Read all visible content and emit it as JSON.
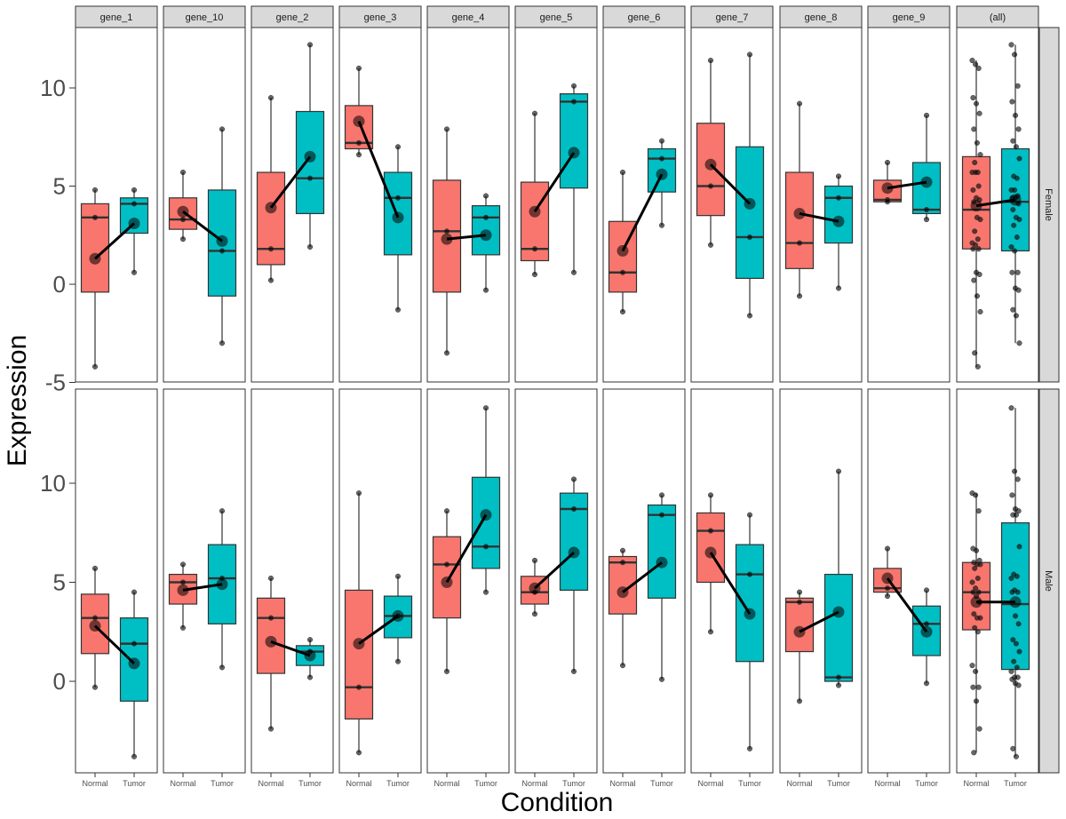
{
  "chart_data": {
    "type": "boxplot",
    "xlabel": "Condition",
    "ylabel": "Expression",
    "genes": [
      "gene_1",
      "gene_10",
      "gene_2",
      "gene_3",
      "gene_4",
      "gene_5",
      "gene_6",
      "gene_7",
      "gene_8",
      "gene_9",
      "(all)"
    ],
    "conditions": [
      "Normal",
      "Tumor"
    ],
    "condition_colors": {
      "Normal": "#F8766D",
      "Tumor": "#00BFC4"
    },
    "y_ticks": [
      -5,
      0,
      5,
      10
    ],
    "panels": [
      {
        "sex": "Female",
        "ylim": [
          -5,
          13
        ],
        "y_ticks": [
          -5,
          0,
          5,
          10
        ],
        "genes": {
          "gene_1": {
            "Normal": {
              "min": -4.2,
              "q1": -0.4,
              "median": 3.4,
              "q3": 4.1,
              "max": 4.8,
              "mean": 1.3,
              "points": [
                4.8,
                3.4,
                -4.2
              ]
            },
            "Tumor": {
              "min": 0.6,
              "q1": 2.6,
              "median": 4.1,
              "q3": 4.4,
              "max": 4.8,
              "mean": 3.1,
              "points": [
                4.8,
                4.1,
                0.6
              ]
            }
          },
          "gene_10": {
            "Normal": {
              "min": 2.3,
              "q1": 2.8,
              "median": 3.3,
              "q3": 4.4,
              "max": 5.7,
              "mean": 3.7,
              "points": [
                5.7,
                3.3,
                2.3
              ]
            },
            "Tumor": {
              "min": -3.0,
              "q1": -0.6,
              "median": 1.7,
              "q3": 4.8,
              "max": 7.9,
              "mean": 2.2,
              "points": [
                7.9,
                1.7,
                -3.0
              ]
            }
          },
          "gene_2": {
            "Normal": {
              "min": 0.2,
              "q1": 1.0,
              "median": 1.8,
              "q3": 5.7,
              "max": 9.5,
              "mean": 3.9,
              "points": [
                9.5,
                1.8,
                0.2
              ]
            },
            "Tumor": {
              "min": 1.9,
              "q1": 3.6,
              "median": 5.4,
              "q3": 8.8,
              "max": 12.2,
              "mean": 6.5,
              "points": [
                12.2,
                5.4,
                1.9
              ]
            }
          },
          "gene_3": {
            "Normal": {
              "min": 6.6,
              "q1": 6.9,
              "median": 7.2,
              "q3": 9.1,
              "max": 11.0,
              "mean": 8.3,
              "points": [
                11.0,
                7.2,
                6.6
              ]
            },
            "Tumor": {
              "min": -1.3,
              "q1": 1.5,
              "median": 4.4,
              "q3": 5.7,
              "max": 7.0,
              "mean": 3.4,
              "points": [
                7.0,
                4.4,
                -1.3
              ]
            }
          },
          "gene_4": {
            "Normal": {
              "min": -3.5,
              "q1": -0.4,
              "median": 2.7,
              "q3": 5.3,
              "max": 7.9,
              "mean": 2.3,
              "points": [
                7.9,
                2.7,
                -3.5
              ]
            },
            "Tumor": {
              "min": -0.3,
              "q1": 1.5,
              "median": 3.4,
              "q3": 4.0,
              "max": 4.5,
              "mean": 2.5,
              "points": [
                4.5,
                3.4,
                -0.3
              ]
            }
          },
          "gene_5": {
            "Normal": {
              "min": 0.5,
              "q1": 1.2,
              "median": 1.8,
              "q3": 5.2,
              "max": 8.7,
              "mean": 3.7,
              "points": [
                8.7,
                1.8,
                0.5
              ]
            },
            "Tumor": {
              "min": 0.6,
              "q1": 4.9,
              "median": 9.3,
              "q3": 9.7,
              "max": 10.1,
              "mean": 6.7,
              "points": [
                10.1,
                9.3,
                0.6
              ]
            }
          },
          "gene_6": {
            "Normal": {
              "min": -1.4,
              "q1": -0.4,
              "median": 0.6,
              "q3": 3.2,
              "max": 5.7,
              "mean": 1.7,
              "points": [
                5.7,
                0.6,
                -1.4
              ]
            },
            "Tumor": {
              "min": 3.0,
              "q1": 4.7,
              "median": 6.4,
              "q3": 6.9,
              "max": 7.3,
              "mean": 5.6,
              "points": [
                7.3,
                6.4,
                3.0
              ]
            }
          },
          "gene_7": {
            "Normal": {
              "min": 2.0,
              "q1": 3.5,
              "median": 5.0,
              "q3": 8.2,
              "max": 11.4,
              "mean": 6.1,
              "points": [
                11.4,
                5.0,
                2.0
              ]
            },
            "Tumor": {
              "min": -1.6,
              "q1": 0.3,
              "median": 2.4,
              "q3": 7.0,
              "max": 11.7,
              "mean": 4.1,
              "points": [
                11.7,
                2.4,
                -1.6
              ]
            }
          },
          "gene_8": {
            "Normal": {
              "min": -0.6,
              "q1": 0.8,
              "median": 2.1,
              "q3": 5.7,
              "max": 9.2,
              "mean": 3.6,
              "points": [
                9.2,
                2.1,
                -0.6
              ]
            },
            "Tumor": {
              "min": -0.2,
              "q1": 2.1,
              "median": 4.4,
              "q3": 5.0,
              "max": 5.5,
              "mean": 3.2,
              "points": [
                5.5,
                4.4,
                -0.2
              ]
            }
          },
          "gene_9": {
            "Normal": {
              "min": 4.2,
              "q1": 4.2,
              "median": 4.3,
              "q3": 5.3,
              "max": 6.2,
              "mean": 4.9,
              "points": [
                6.2,
                4.3,
                4.2
              ]
            },
            "Tumor": {
              "min": 3.3,
              "q1": 3.6,
              "median": 3.8,
              "q3": 6.2,
              "max": 8.6,
              "mean": 5.2,
              "points": [
                8.6,
                3.8,
                3.3
              ]
            }
          },
          "(all)": {
            "Normal": {
              "min": -4.2,
              "q1": 1.8,
              "median": 3.8,
              "q3": 6.5,
              "max": 11.4,
              "mean": 4.0,
              "points": [
                11.4,
                11.2,
                11.0,
                9.5,
                9.2,
                8.7,
                7.9,
                7.2,
                6.6,
                6.2,
                5.7,
                5.7,
                5.7,
                5.0,
                4.8,
                4.4,
                4.3,
                4.2,
                3.4,
                3.3,
                2.7,
                2.3,
                2.1,
                2.0,
                1.8,
                1.8,
                0.6,
                0.5,
                0.2,
                -0.6,
                -1.4,
                -3.5,
                -4.2
              ]
            },
            "Tumor": {
              "min": -3.0,
              "q1": 1.7,
              "median": 4.2,
              "q3": 6.9,
              "max": 12.2,
              "mean": 4.3,
              "points": [
                12.2,
                11.7,
                10.1,
                9.3,
                8.6,
                7.9,
                7.3,
                7.0,
                6.4,
                5.5,
                5.4,
                4.8,
                4.8,
                4.5,
                4.4,
                4.4,
                4.1,
                3.8,
                3.4,
                3.3,
                3.0,
                2.4,
                1.9,
                1.7,
                0.6,
                0.6,
                -0.2,
                -0.3,
                -1.3,
                -1.6,
                -3.0
              ]
            }
          }
        }
      },
      {
        "sex": "Male",
        "ylim": [
          -4.3,
          14.2
        ],
        "y_ticks": [
          0,
          5,
          10
        ],
        "genes": {
          "gene_1": {
            "Normal": {
              "min": -0.3,
              "q1": 1.4,
              "median": 3.2,
              "q3": 4.4,
              "max": 5.7,
              "mean": 2.8,
              "points": [
                5.7,
                3.2,
                -0.3
              ]
            },
            "Tumor": {
              "min": -3.8,
              "q1": -1.0,
              "median": 1.9,
              "q3": 3.2,
              "max": 4.5,
              "mean": 0.9,
              "points": [
                4.5,
                1.9,
                -3.8
              ]
            }
          },
          "gene_10": {
            "Normal": {
              "min": 2.7,
              "q1": 3.9,
              "median": 5.0,
              "q3": 5.4,
              "max": 5.9,
              "mean": 4.6,
              "points": [
                5.9,
                5.0,
                2.7
              ]
            },
            "Tumor": {
              "min": 0.7,
              "q1": 2.9,
              "median": 5.2,
              "q3": 6.9,
              "max": 8.6,
              "mean": 4.9,
              "points": [
                8.6,
                5.2,
                0.7
              ]
            }
          },
          "gene_2": {
            "Normal": {
              "min": -2.4,
              "q1": 0.4,
              "median": 3.2,
              "q3": 4.2,
              "max": 5.2,
              "mean": 2.0,
              "points": [
                5.2,
                3.2,
                -2.4
              ]
            },
            "Tumor": {
              "min": 0.2,
              "q1": 0.8,
              "median": 1.5,
              "q3": 1.8,
              "max": 2.1,
              "mean": 1.3,
              "points": [
                2.1,
                1.5,
                0.2
              ]
            }
          },
          "gene_3": {
            "Normal": {
              "min": -3.6,
              "q1": -1.9,
              "median": -0.3,
              "q3": 4.6,
              "max": 9.5,
              "mean": 1.9,
              "points": [
                9.5,
                -0.3,
                -3.6
              ]
            },
            "Tumor": {
              "min": 1.0,
              "q1": 2.2,
              "median": 3.3,
              "q3": 4.3,
              "max": 5.3,
              "mean": 3.3,
              "points": [
                5.3,
                3.3,
                1.0
              ]
            }
          },
          "gene_4": {
            "Normal": {
              "min": 0.5,
              "q1": 3.2,
              "median": 5.9,
              "q3": 7.3,
              "max": 8.6,
              "mean": 5.0,
              "points": [
                8.6,
                5.9,
                0.5
              ]
            },
            "Tumor": {
              "min": 4.5,
              "q1": 5.7,
              "median": 6.8,
              "q3": 10.3,
              "max": 13.8,
              "mean": 8.4,
              "points": [
                13.8,
                6.8,
                4.5
              ]
            }
          },
          "gene_5": {
            "Normal": {
              "min": 3.4,
              "q1": 3.9,
              "median": 4.5,
              "q3": 5.3,
              "max": 6.1,
              "mean": 4.7,
              "points": [
                6.1,
                4.5,
                3.4
              ]
            },
            "Tumor": {
              "min": 0.5,
              "q1": 4.6,
              "median": 8.7,
              "q3": 9.5,
              "max": 10.2,
              "mean": 6.5,
              "points": [
                10.2,
                8.7,
                0.5
              ]
            }
          },
          "gene_6": {
            "Normal": {
              "min": 0.8,
              "q1": 3.4,
              "median": 6.0,
              "q3": 6.3,
              "max": 6.6,
              "mean": 4.5,
              "points": [
                6.6,
                6.0,
                0.8
              ]
            },
            "Tumor": {
              "min": 0.1,
              "q1": 4.2,
              "median": 8.4,
              "q3": 8.9,
              "max": 9.4,
              "mean": 6.0,
              "points": [
                9.4,
                8.4,
                0.1
              ]
            }
          },
          "gene_7": {
            "Normal": {
              "min": 2.5,
              "q1": 5.0,
              "median": 7.6,
              "q3": 8.5,
              "max": 9.4,
              "mean": 6.5,
              "points": [
                9.4,
                7.6,
                2.5
              ]
            },
            "Tumor": {
              "min": -3.4,
              "q1": 1.0,
              "median": 5.4,
              "q3": 6.9,
              "max": 8.4,
              "mean": 3.4,
              "points": [
                8.4,
                5.4,
                -3.4
              ]
            }
          },
          "gene_8": {
            "Normal": {
              "min": -1.0,
              "q1": 1.5,
              "median": 4.0,
              "q3": 4.2,
              "max": 4.5,
              "mean": 2.5,
              "points": [
                4.5,
                4.0,
                -1.0
              ]
            },
            "Tumor": {
              "min": -0.2,
              "q1": 0.0,
              "median": 0.2,
              "q3": 5.4,
              "max": 10.6,
              "mean": 3.5,
              "points": [
                10.6,
                0.2,
                -0.2
              ]
            }
          },
          "gene_9": {
            "Normal": {
              "min": 4.3,
              "q1": 4.5,
              "median": 4.7,
              "q3": 5.7,
              "max": 6.7,
              "mean": 5.2,
              "points": [
                6.7,
                4.7,
                4.3
              ]
            },
            "Tumor": {
              "min": -0.1,
              "q1": 1.3,
              "median": 2.9,
              "q3": 3.8,
              "max": 4.6,
              "mean": 2.5,
              "points": [
                4.6,
                2.9,
                -0.1
              ]
            }
          },
          "(all)": {
            "Normal": {
              "min": -3.6,
              "q1": 2.6,
              "median": 4.5,
              "q3": 6.0,
              "max": 9.5,
              "mean": 4.0,
              "points": [
                9.5,
                9.4,
                8.6,
                6.7,
                6.6,
                6.1,
                6.0,
                5.9,
                5.9,
                5.7,
                5.2,
                5.0,
                4.7,
                4.5,
                4.5,
                4.3,
                4.0,
                3.4,
                3.2,
                3.2,
                2.7,
                2.5,
                0.8,
                0.5,
                -0.3,
                -0.3,
                -1.0,
                -2.4,
                -3.6
              ]
            },
            "Tumor": {
              "min": -3.8,
              "q1": 0.6,
              "median": 3.9,
              "q3": 8.0,
              "max": 13.8,
              "mean": 4.0,
              "points": [
                13.8,
                10.6,
                10.2,
                9.4,
                8.7,
                8.6,
                8.4,
                8.4,
                6.8,
                5.4,
                5.3,
                5.2,
                4.6,
                4.5,
                4.5,
                3.3,
                2.9,
                2.1,
                1.9,
                1.5,
                1.0,
                0.7,
                0.5,
                0.2,
                0.2,
                0.1,
                -0.1,
                -0.2,
                -3.4,
                -3.8
              ]
            }
          }
        }
      }
    ]
  }
}
